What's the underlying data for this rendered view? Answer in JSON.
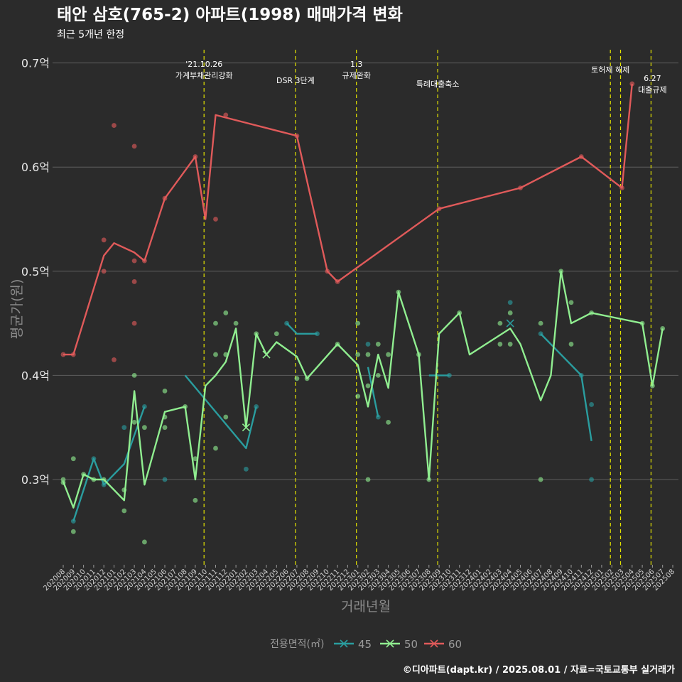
{
  "chart_data": {
    "type": "line",
    "title": "태안 삼호(765-2) 아파트(1998) 매매가격 변화",
    "subtitle": "최근 5개년 한정",
    "xlabel": "거래년월",
    "ylabel": "평균가(원)",
    "ylim": [
      0.22,
      0.72
    ],
    "yticks": [
      {
        "value": 0.3,
        "label": "0.3억"
      },
      {
        "value": 0.4,
        "label": "0.4억"
      },
      {
        "value": 0.5,
        "label": "0.5억"
      },
      {
        "value": 0.6,
        "label": "0.6억"
      },
      {
        "value": 0.7,
        "label": "0.7억"
      }
    ],
    "categories": [
      "202008",
      "202009",
      "202010",
      "202011",
      "202012",
      "202101",
      "202102",
      "202103",
      "202104",
      "202105",
      "202106",
      "202107",
      "202108",
      "202109",
      "202110",
      "202111",
      "202112",
      "202201",
      "202202",
      "202203",
      "202204",
      "202205",
      "202206",
      "202207",
      "202208",
      "202209",
      "202210",
      "202211",
      "202212",
      "202301",
      "202302",
      "202303",
      "202304",
      "202305",
      "202306",
      "202307",
      "202308",
      "202309",
      "202310",
      "202311",
      "202312",
      "202401",
      "202402",
      "202403",
      "202404",
      "202405",
      "202406",
      "202407",
      "202408",
      "202409",
      "202410",
      "202411",
      "202412",
      "202501",
      "202502",
      "202503",
      "202504",
      "202505",
      "202506",
      "202507",
      "202508"
    ],
    "events": [
      {
        "x": "202110",
        "lines": [
          "'21.10.26",
          "가계부채관리강화"
        ]
      },
      {
        "x": "202207",
        "lines": [
          "DSR 3단계"
        ]
      },
      {
        "x": "202301",
        "lines": [
          "1.3",
          "규제완화"
        ]
      },
      {
        "x": "202309",
        "lines": [
          "특례대출축소"
        ]
      },
      {
        "x": "202502",
        "lines": [
          "토허제 해제"
        ]
      },
      {
        "x": "202503",
        "lines": []
      },
      {
        "x": "202506",
        "lines": [
          "6.27",
          "대출규제"
        ]
      }
    ],
    "legend": {
      "title": "전용면적(㎡)",
      "position": "bottom"
    },
    "series": [
      {
        "name": "45",
        "color": "#2a9d9f",
        "line": [
          [
            "202009",
            0.26
          ],
          [
            "202011",
            0.32
          ],
          [
            "202012",
            0.295
          ],
          [
            "202102",
            0.315
          ],
          [
            "202104",
            0.37
          ],
          null,
          [
            "202108",
            0.4
          ],
          [
            "202202",
            0.33
          ],
          [
            "202203",
            0.37
          ],
          null,
          [
            "202206",
            0.45
          ],
          [
            "202207",
            0.44
          ],
          [
            "202209",
            0.44
          ],
          null,
          [
            "202302",
            0.408
          ],
          [
            "202303",
            0.36
          ],
          null,
          [
            "202308",
            0.4
          ],
          [
            "202310",
            0.4
          ],
          null,
          [
            "202404",
            0.45
          ],
          null,
          [
            "202407",
            0.44
          ],
          [
            "202411",
            0.4
          ],
          [
            "202412",
            0.337
          ]
        ],
        "points": [
          [
            "202009",
            0.26
          ],
          [
            "202011",
            0.32
          ],
          [
            "202012",
            0.295
          ],
          [
            "202102",
            0.35
          ],
          [
            "202104",
            0.37
          ],
          [
            "202106",
            0.3
          ],
          [
            "202202",
            0.31
          ],
          [
            "202203",
            0.37
          ],
          [
            "202206",
            0.45
          ],
          [
            "202209",
            0.44
          ],
          [
            "202302",
            0.43
          ],
          [
            "202303",
            0.36
          ],
          [
            "202310",
            0.4
          ],
          [
            "202404",
            0.47
          ],
          [
            "202407",
            0.44
          ],
          [
            "202411",
            0.4
          ],
          [
            "202412",
            0.372
          ],
          [
            "202412",
            0.3
          ]
        ],
        "crosses": [
          [
            "202404",
            0.45
          ]
        ]
      },
      {
        "name": "50",
        "color": "#90ee90",
        "line": [
          [
            "202008",
            0.298
          ],
          [
            "202009",
            0.273
          ],
          [
            "202010",
            0.305
          ],
          [
            "202011",
            0.3
          ],
          [
            "202012",
            0.3
          ],
          [
            "202102",
            0.28
          ],
          [
            "202103",
            0.385
          ],
          [
            "202104",
            0.295
          ],
          [
            "202106",
            0.365
          ],
          [
            "202108",
            0.37
          ],
          [
            "202109",
            0.3
          ],
          [
            "202110",
            0.39
          ],
          [
            "202111",
            0.4
          ],
          [
            "202112",
            0.413
          ],
          [
            "202201",
            0.445
          ],
          [
            "202202",
            0.35
          ],
          [
            "202203",
            0.44
          ],
          [
            "202204",
            0.42
          ],
          [
            "202205",
            0.432
          ],
          [
            "202207",
            0.418
          ],
          [
            "202208",
            0.397
          ],
          [
            "202211",
            0.43
          ],
          [
            "202301",
            0.41
          ],
          [
            "202302",
            0.37
          ],
          [
            "202303",
            0.42
          ],
          [
            "202304",
            0.388
          ],
          [
            "202305",
            0.48
          ],
          [
            "202307",
            0.42
          ],
          [
            "202308",
            0.3
          ],
          [
            "202309",
            0.44
          ],
          [
            "202311",
            0.46
          ],
          [
            "202312",
            0.42
          ],
          [
            "202404",
            0.445
          ],
          [
            "202405",
            0.43
          ],
          [
            "202407",
            0.376
          ],
          [
            "202408",
            0.4
          ],
          [
            "202409",
            0.5
          ],
          [
            "202410",
            0.45
          ],
          [
            "202412",
            0.46
          ],
          [
            "202505",
            0.45
          ],
          [
            "202506",
            0.39
          ],
          [
            "202507",
            0.445
          ]
        ],
        "points": [
          [
            "202008",
            0.3
          ],
          [
            "202008",
            0.297
          ],
          [
            "202009",
            0.32
          ],
          [
            "202009",
            0.25
          ],
          [
            "202010",
            0.305
          ],
          [
            "202011",
            0.3
          ],
          [
            "202012",
            0.3
          ],
          [
            "202102",
            0.29
          ],
          [
            "202102",
            0.27
          ],
          [
            "202103",
            0.4
          ],
          [
            "202103",
            0.355
          ],
          [
            "202104",
            0.35
          ],
          [
            "202104",
            0.24
          ],
          [
            "202106",
            0.385
          ],
          [
            "202106",
            0.35
          ],
          [
            "202106",
            0.36
          ],
          [
            "202108",
            0.37
          ],
          [
            "202109",
            0.32
          ],
          [
            "202109",
            0.28
          ],
          [
            "202111",
            0.45
          ],
          [
            "202111",
            0.42
          ],
          [
            "202111",
            0.33
          ],
          [
            "202112",
            0.46
          ],
          [
            "202112",
            0.42
          ],
          [
            "202112",
            0.36
          ],
          [
            "202201",
            0.45
          ],
          [
            "202203",
            0.44
          ],
          [
            "202205",
            0.44
          ],
          [
            "202207",
            0.397
          ],
          [
            "202208",
            0.397
          ],
          [
            "202211",
            0.43
          ],
          [
            "202301",
            0.45
          ],
          [
            "202301",
            0.42
          ],
          [
            "202301",
            0.38
          ],
          [
            "202302",
            0.42
          ],
          [
            "202302",
            0.39
          ],
          [
            "202302",
            0.3
          ],
          [
            "202303",
            0.43
          ],
          [
            "202303",
            0.4
          ],
          [
            "202304",
            0.42
          ],
          [
            "202304",
            0.355
          ],
          [
            "202305",
            0.48
          ],
          [
            "202307",
            0.42
          ],
          [
            "202308",
            0.3
          ],
          [
            "202311",
            0.46
          ],
          [
            "202403",
            0.45
          ],
          [
            "202403",
            0.43
          ],
          [
            "202404",
            0.46
          ],
          [
            "202404",
            0.43
          ],
          [
            "202407",
            0.45
          ],
          [
            "202407",
            0.3
          ],
          [
            "202409",
            0.5
          ],
          [
            "202410",
            0.47
          ],
          [
            "202410",
            0.43
          ],
          [
            "202412",
            0.46
          ],
          [
            "202505",
            0.45
          ],
          [
            "202506",
            0.39
          ],
          [
            "202507",
            0.445
          ]
        ],
        "crosses": [
          [
            "202202",
            0.35
          ],
          [
            "202204",
            0.42
          ]
        ]
      },
      {
        "name": "60",
        "color": "#e05a5a",
        "line": [
          [
            "202008",
            0.42
          ],
          [
            "202009",
            0.42
          ],
          [
            "202012",
            0.515
          ],
          [
            "202101",
            0.527
          ],
          [
            "202103",
            0.518
          ],
          [
            "202104",
            0.51
          ],
          [
            "202106",
            0.57
          ],
          [
            "202109",
            0.61
          ],
          [
            "202110",
            0.55
          ],
          [
            "202111",
            0.65
          ],
          [
            "202207",
            0.63
          ],
          [
            "202210",
            0.5
          ],
          [
            "202211",
            0.49
          ],
          [
            "202309",
            0.56
          ],
          [
            "202405",
            0.58
          ],
          [
            "202411",
            0.61
          ],
          [
            "202503",
            0.58
          ],
          [
            "202504",
            0.68
          ]
        ],
        "points": [
          [
            "202008",
            0.42
          ],
          [
            "202009",
            0.42
          ],
          [
            "202012",
            0.53
          ],
          [
            "202012",
            0.5
          ],
          [
            "202101",
            0.64
          ],
          [
            "202101",
            0.415
          ],
          [
            "202103",
            0.62
          ],
          [
            "202103",
            0.51
          ],
          [
            "202103",
            0.49
          ],
          [
            "202103",
            0.45
          ],
          [
            "202104",
            0.51
          ],
          [
            "202106",
            0.57
          ],
          [
            "202109",
            0.61
          ],
          [
            "202111",
            0.55
          ],
          [
            "202112",
            0.65
          ],
          [
            "202207",
            0.63
          ],
          [
            "202210",
            0.5
          ],
          [
            "202211",
            0.49
          ],
          [
            "202309",
            0.56
          ],
          [
            "202405",
            0.58
          ],
          [
            "202411",
            0.61
          ],
          [
            "202503",
            0.58
          ],
          [
            "202504",
            0.68
          ]
        ],
        "crosses": []
      }
    ],
    "caption": "©디아파트(dapt.kr) / 2025.08.01 / 자료=국토교통부 실거래가"
  }
}
